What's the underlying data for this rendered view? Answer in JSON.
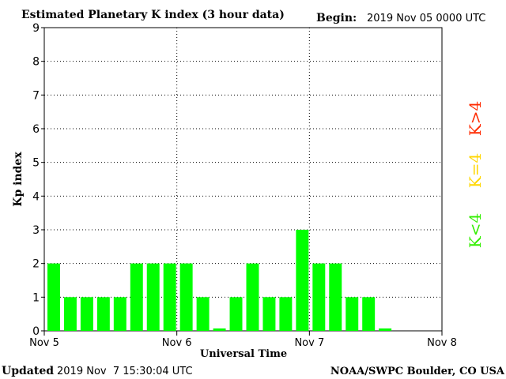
{
  "header": {
    "title": "Estimated Planetary K index (3 hour data)",
    "begin_label": "Begin:",
    "begin_value": "2019 Nov 05 0000 UTC"
  },
  "footer": {
    "updated_label": "Updated",
    "updated_value": "2019 Nov  7 15:30:04 UTC",
    "source": "NOAA/SWPC Boulder, CO USA"
  },
  "legend": {
    "items": [
      {
        "label": "K>4",
        "color": "#ff2a00"
      },
      {
        "label": "K=4",
        "color": "#ffd700"
      },
      {
        "label": "K<4",
        "color": "#33ee00"
      }
    ]
  },
  "colors": {
    "bar": "#00ff00",
    "axis": "#000000",
    "grid": "#000000",
    "background": "#ffffff"
  },
  "chart_data": {
    "type": "bar",
    "title": "Estimated Planetary K index (3 hour data)",
    "xlabel": "Universal Time",
    "ylabel": "Kp index",
    "ylim": [
      0,
      9
    ],
    "yticks": [
      0,
      1,
      2,
      3,
      4,
      5,
      6,
      7,
      8,
      9
    ],
    "xtick_labels": [
      "Nov 5",
      "Nov 6",
      "Nov 7",
      "Nov 8"
    ],
    "interval_hours": 3,
    "grid": true,
    "series": [
      {
        "values": [
          2,
          1,
          1,
          1,
          1,
          2,
          2,
          2,
          2,
          1,
          0,
          1,
          2,
          1,
          1,
          3,
          2,
          2,
          1,
          1,
          0
        ]
      }
    ]
  }
}
